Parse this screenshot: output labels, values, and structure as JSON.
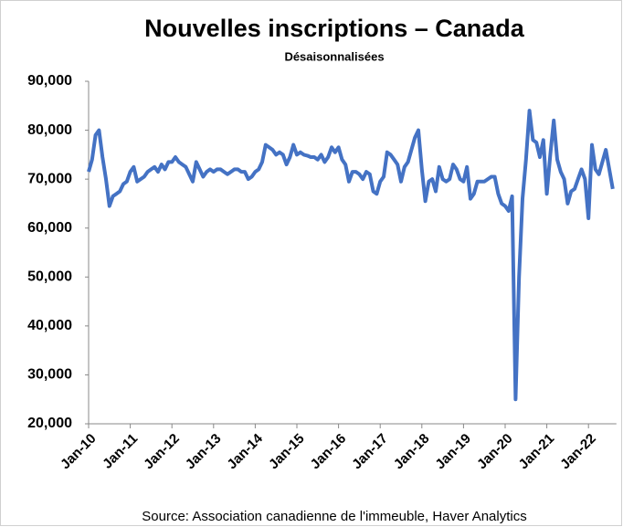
{
  "chart_data": {
    "type": "line",
    "title": "Nouvelles inscriptions – Canada",
    "subtitle": "Désaisonnalisées",
    "source": "Source: Association canadienne de l'immeuble, Haver Analytics",
    "categories": [
      "Jan-10",
      null,
      null,
      null,
      null,
      null,
      null,
      null,
      null,
      null,
      null,
      null,
      "Jan-11",
      null,
      null,
      null,
      null,
      null,
      null,
      null,
      null,
      null,
      null,
      null,
      "Jan-12",
      null,
      null,
      null,
      null,
      null,
      null,
      null,
      null,
      null,
      null,
      null,
      "Jan-13",
      null,
      null,
      null,
      null,
      null,
      null,
      null,
      null,
      null,
      null,
      null,
      "Jan-14",
      null,
      null,
      null,
      null,
      null,
      null,
      null,
      null,
      null,
      null,
      null,
      "Jan-15",
      null,
      null,
      null,
      null,
      null,
      null,
      null,
      null,
      null,
      null,
      null,
      "Jan-16",
      null,
      null,
      null,
      null,
      null,
      null,
      null,
      null,
      null,
      null,
      null,
      "Jan-17",
      null,
      null,
      null,
      null,
      null,
      null,
      null,
      null,
      null,
      null,
      null,
      "Jan-18",
      null,
      null,
      null,
      null,
      null,
      null,
      null,
      null,
      null,
      null,
      null,
      "Jan-19",
      null,
      null,
      null,
      null,
      null,
      null,
      null,
      null,
      null,
      null,
      null,
      "Jan-20",
      null,
      null,
      null,
      null,
      null,
      null,
      null,
      null,
      null,
      null,
      null,
      "Jan-21",
      null,
      null,
      null,
      null,
      null,
      null,
      null,
      null,
      null,
      null,
      null,
      "Jan-22",
      null,
      null,
      null,
      null,
      null,
      null,
      null
    ],
    "series": [
      {
        "name": "Nouvelles inscriptions",
        "color": "#4472c4",
        "values": [
          71500,
          74000,
          79000,
          80000,
          74500,
          70000,
          64500,
          66500,
          67000,
          67500,
          69000,
          69500,
          71500,
          72500,
          69500,
          70000,
          70500,
          71500,
          72000,
          72500,
          71500,
          73000,
          72000,
          73500,
          73500,
          74500,
          73500,
          73000,
          72500,
          71000,
          69500,
          73500,
          72000,
          70500,
          71500,
          72000,
          71500,
          72000,
          72000,
          71500,
          71000,
          71500,
          72000,
          72000,
          71500,
          71500,
          70000,
          70500,
          71500,
          72000,
          73500,
          77000,
          76500,
          76000,
          75000,
          75500,
          75000,
          73000,
          74500,
          77000,
          75000,
          75500,
          75000,
          74800,
          74500,
          74500,
          74000,
          75000,
          73500,
          74500,
          76500,
          75500,
          76500,
          74000,
          73000,
          69500,
          71500,
          71500,
          71000,
          70000,
          71500,
          71000,
          67500,
          67000,
          69500,
          70500,
          75500,
          75000,
          74000,
          73000,
          69500,
          72500,
          73500,
          76000,
          78500,
          80000,
          72000,
          65500,
          69500,
          70000,
          67500,
          72500,
          70000,
          69500,
          70000,
          73000,
          72000,
          70000,
          69500,
          72500,
          66000,
          67000,
          69500,
          69500,
          69500,
          70000,
          70500,
          70500,
          67000,
          65000,
          64500,
          63500,
          66500,
          25000,
          50000,
          66000,
          74000,
          84000,
          78000,
          77500,
          74500,
          78000,
          67000,
          75000,
          82000,
          74000,
          71500,
          70000,
          65000,
          67500,
          68000,
          70000,
          72000,
          70000,
          62000,
          77000,
          72000,
          71000,
          73500,
          76000,
          72000,
          68000
        ]
      }
    ],
    "ylim": [
      20000,
      90000
    ],
    "yticks": [
      {
        "value": 20000,
        "label": "20,000"
      },
      {
        "value": 30000,
        "label": "30,000"
      },
      {
        "value": 40000,
        "label": "40,000"
      },
      {
        "value": 50000,
        "label": "50,000"
      },
      {
        "value": 60000,
        "label": "60,000"
      },
      {
        "value": 70000,
        "label": "70,000"
      },
      {
        "value": 80000,
        "label": "80,000"
      },
      {
        "value": 90000,
        "label": "90,000"
      }
    ],
    "grid": false
  }
}
